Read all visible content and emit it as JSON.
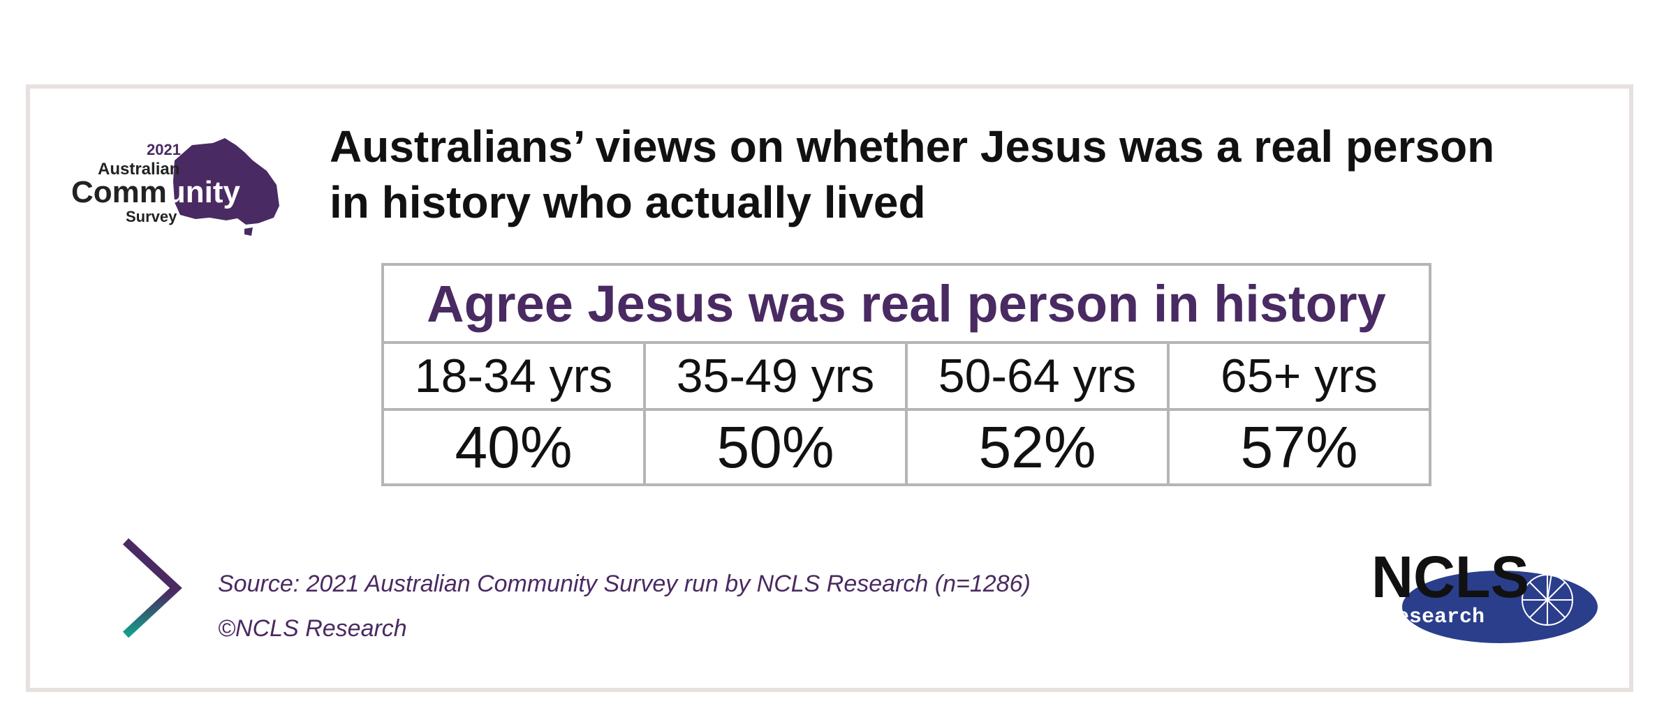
{
  "title_lines": [
    "Australians’ views on whether Jesus was a real person",
    "in history who actually lived"
  ],
  "logos": {
    "acs": {
      "year": "2021",
      "line1": "Australian",
      "line2a": "Comm",
      "line2b": "unity",
      "line3": "Survey"
    },
    "ncls": {
      "main": "NCLS",
      "sub": "research"
    }
  },
  "chart_data": {
    "type": "table",
    "title": "Agree Jesus was real person in history",
    "categories": [
      "18-34 yrs",
      "35-49 yrs",
      "50-64 yrs",
      "65+ yrs"
    ],
    "values": [
      40,
      50,
      52,
      57
    ],
    "value_labels": [
      "40%",
      "50%",
      "52%",
      "57%"
    ]
  },
  "footer": {
    "source": "Source:  2021 Australian Community Survey run by NCLS Research (n=1286)",
    "copyright": "©NCLS Research"
  },
  "colors": {
    "brand_purple": "#4a2a62",
    "ncls_blue": "#2a3e8c",
    "teal": "#12a08a",
    "frame": "#e6e1de",
    "table_border": "#b5b5b5"
  }
}
